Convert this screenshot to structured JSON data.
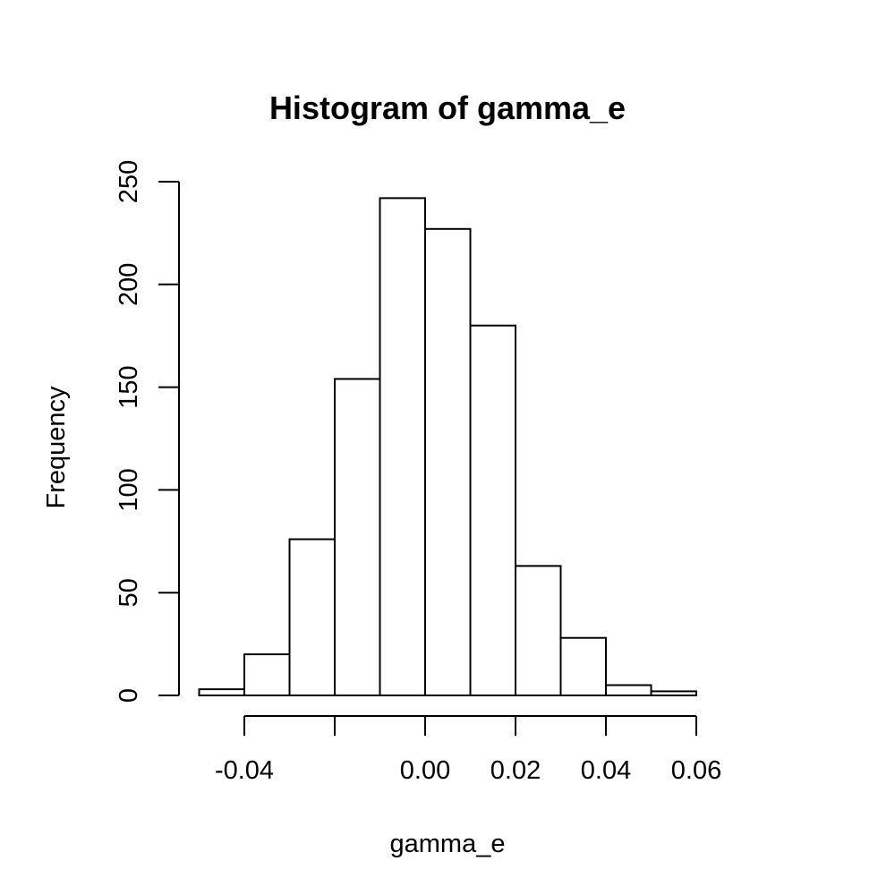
{
  "chart_data": {
    "type": "bar",
    "title": "Histogram of gamma_e",
    "xlabel": "gamma_e",
    "ylabel": "Frequency",
    "bins": [
      {
        "start": -0.05,
        "end": -0.04,
        "count": 3
      },
      {
        "start": -0.04,
        "end": -0.03,
        "count": 20
      },
      {
        "start": -0.03,
        "end": -0.02,
        "count": 76
      },
      {
        "start": -0.02,
        "end": -0.01,
        "count": 154
      },
      {
        "start": -0.01,
        "end": 0.0,
        "count": 242
      },
      {
        "start": 0.0,
        "end": 0.01,
        "count": 227
      },
      {
        "start": 0.01,
        "end": 0.02,
        "count": 180
      },
      {
        "start": 0.02,
        "end": 0.03,
        "count": 63
      },
      {
        "start": 0.03,
        "end": 0.04,
        "count": 28
      },
      {
        "start": 0.04,
        "end": 0.05,
        "count": 5
      },
      {
        "start": 0.05,
        "end": 0.06,
        "count": 2
      }
    ],
    "x_ticks": [
      -0.04,
      -0.02,
      0.0,
      0.02,
      0.04,
      0.06
    ],
    "x_tick_labels": [
      "-0.04",
      "",
      "0.00",
      "0.02",
      "0.04",
      "0.06"
    ],
    "y_ticks": [
      0,
      50,
      100,
      150,
      200,
      250
    ],
    "y_tick_labels": [
      "0",
      "50",
      "100",
      "150",
      "200",
      "250"
    ],
    "xlim": [
      -0.05,
      0.06
    ],
    "ylim": [
      0,
      250
    ],
    "grid": false,
    "legend": "none",
    "colors": {
      "bar_fill": "#ffffff",
      "bar_stroke": "#000000"
    }
  }
}
